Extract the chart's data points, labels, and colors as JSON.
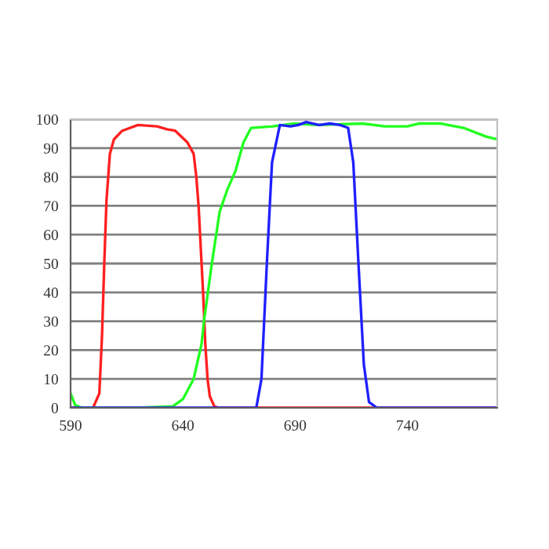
{
  "chart_data": {
    "type": "line",
    "xlim": [
      590,
      780
    ],
    "xticks": [
      590,
      640,
      690,
      740
    ],
    "ylim": [
      0,
      100
    ],
    "yticks": [
      0,
      10,
      20,
      30,
      40,
      50,
      60,
      70,
      80,
      90,
      100
    ],
    "grid": "y",
    "line_style": "solid",
    "marker": "none",
    "series": [
      {
        "color": "#ff2020",
        "x": [
          590,
          600,
          602.8,
          604,
          605,
          606,
          607.5,
          609.3,
          613,
          620,
          628.5,
          633,
          636.6,
          642,
          644.8,
          646,
          647,
          648,
          649,
          650,
          651,
          652,
          654,
          656,
          700,
          780
        ],
        "values": [
          0,
          0,
          5,
          25,
          50,
          72,
          88,
          93,
          96,
          98,
          97.5,
          96.5,
          96,
          92,
          88,
          80,
          70,
          55,
          40,
          22,
          10,
          4,
          0.5,
          0,
          0,
          0
        ]
      },
      {
        "color": "#20ff20",
        "x": [
          590,
          592,
          595,
          620,
          635.5,
          640,
          644.8,
          648.3,
          649.4,
          652.9,
          656.4,
          660,
          663.4,
          667,
          670.4,
          680,
          690,
          700,
          720,
          730,
          740,
          745,
          755,
          765,
          775,
          780
        ],
        "values": [
          5,
          1,
          0,
          0,
          0.5,
          3,
          10,
          22,
          30,
          50,
          68,
          76,
          82,
          92,
          97,
          97.5,
          98.5,
          98,
          98.5,
          97.5,
          97.5,
          98.5,
          98.5,
          97,
          94,
          93
        ]
      },
      {
        "color": "#2020ff",
        "x": [
          590,
          672.7,
          675,
          677.4,
          679.7,
          683.2,
          687.9,
          691.4,
          694.9,
          700.7,
          705.4,
          710,
          713.6,
          715.9,
          718.2,
          720.6,
          722.9,
          726.4,
          780
        ],
        "values": [
          0,
          0,
          10,
          50,
          85,
          98,
          97.5,
          98,
          99,
          98,
          98.5,
          98,
          97,
          85,
          50,
          15,
          2,
          0,
          0
        ]
      }
    ]
  }
}
